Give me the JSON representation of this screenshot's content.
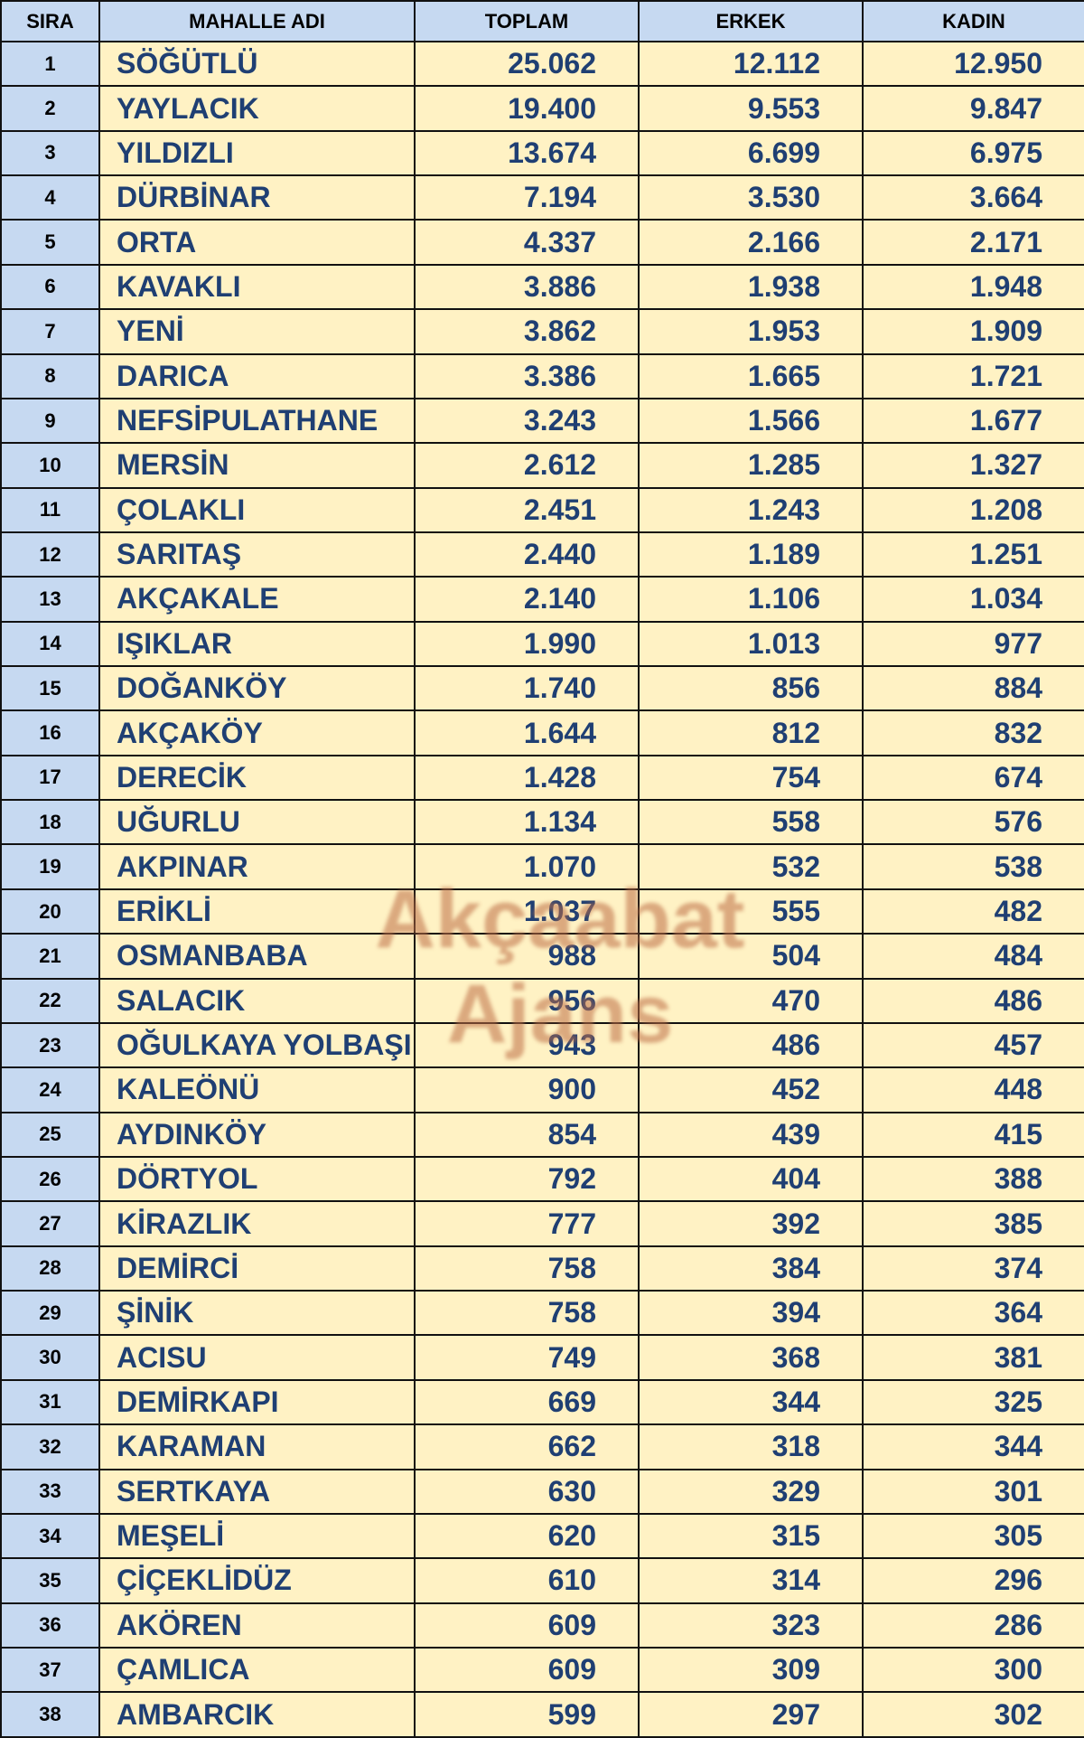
{
  "table": {
    "header": [
      "SIRA",
      "MAHALLE ADI",
      "TOPLAM",
      "ERKEK",
      "KADIN"
    ],
    "rows": [
      [
        "1",
        "SÖĞÜTLÜ",
        "25.062",
        "12.112",
        "12.950"
      ],
      [
        "2",
        "YAYLACIK",
        "19.400",
        "9.553",
        "9.847"
      ],
      [
        "3",
        "YILDIZLI",
        "13.674",
        "6.699",
        "6.975"
      ],
      [
        "4",
        "DÜRBİNAR",
        "7.194",
        "3.530",
        "3.664"
      ],
      [
        "5",
        "ORTA",
        "4.337",
        "2.166",
        "2.171"
      ],
      [
        "6",
        "KAVAKLI",
        "3.886",
        "1.938",
        "1.948"
      ],
      [
        "7",
        "YENİ",
        "3.862",
        "1.953",
        "1.909"
      ],
      [
        "8",
        "DARICA",
        "3.386",
        "1.665",
        "1.721"
      ],
      [
        "9",
        "NEFSİPULATHANE",
        "3.243",
        "1.566",
        "1.677"
      ],
      [
        "10",
        "MERSİN",
        "2.612",
        "1.285",
        "1.327"
      ],
      [
        "11",
        "ÇOLAKLI",
        "2.451",
        "1.243",
        "1.208"
      ],
      [
        "12",
        "SARITAŞ",
        "2.440",
        "1.189",
        "1.251"
      ],
      [
        "13",
        "AKÇAKALE",
        "2.140",
        "1.106",
        "1.034"
      ],
      [
        "14",
        "IŞIKLAR",
        "1.990",
        "1.013",
        "977"
      ],
      [
        "15",
        "DOĞANKÖY",
        "1.740",
        "856",
        "884"
      ],
      [
        "16",
        "AKÇAKÖY",
        "1.644",
        "812",
        "832"
      ],
      [
        "17",
        "DERECİK",
        "1.428",
        "754",
        "674"
      ],
      [
        "18",
        "UĞURLU",
        "1.134",
        "558",
        "576"
      ],
      [
        "19",
        "AKPINAR",
        "1.070",
        "532",
        "538"
      ],
      [
        "20",
        "ERİKLİ",
        "1.037",
        "555",
        "482"
      ],
      [
        "21",
        "OSMANBABA",
        "988",
        "504",
        "484"
      ],
      [
        "22",
        "SALACIK",
        "956",
        "470",
        "486"
      ],
      [
        "23",
        "OĞULKAYA YOLBAŞI",
        "943",
        "486",
        "457"
      ],
      [
        "24",
        "KALEÖNÜ",
        "900",
        "452",
        "448"
      ],
      [
        "25",
        "AYDINKÖY",
        "854",
        "439",
        "415"
      ],
      [
        "26",
        "DÖRTYOL",
        "792",
        "404",
        "388"
      ],
      [
        "27",
        "KİRAZLIK",
        "777",
        "392",
        "385"
      ],
      [
        "28",
        "DEMİRCİ",
        "758",
        "384",
        "374"
      ],
      [
        "29",
        "ŞİNİK",
        "758",
        "394",
        "364"
      ],
      [
        "30",
        "ACISU",
        "749",
        "368",
        "381"
      ],
      [
        "31",
        "DEMİRKAPI",
        "669",
        "344",
        "325"
      ],
      [
        "32",
        "KARAMAN",
        "662",
        "318",
        "344"
      ],
      [
        "33",
        "SERTKAYA",
        "630",
        "329",
        "301"
      ],
      [
        "34",
        "MEŞELİ",
        "620",
        "315",
        "305"
      ],
      [
        "35",
        "ÇİÇEKLİDÜZ",
        "610",
        "314",
        "296"
      ],
      [
        "36",
        "AKÖREN",
        "609",
        "323",
        "286"
      ],
      [
        "37",
        "ÇAMLICA",
        "609",
        "309",
        "300"
      ],
      [
        "38",
        "AMBARCIK",
        "599",
        "297",
        "302"
      ]
    ]
  },
  "watermark": "Akçaabat Ajans"
}
